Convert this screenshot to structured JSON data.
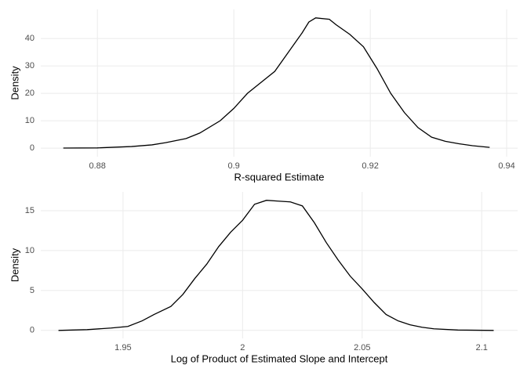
{
  "chart_data": [
    {
      "type": "line",
      "x_label": "R-squared Estimate",
      "y_label": "Density",
      "grid": true,
      "xlim": [
        0.8717,
        0.9416
      ],
      "ylim": [
        -3.1,
        50.6
      ],
      "xticks": [
        0.88,
        0.9,
        0.92,
        0.94
      ],
      "yticks": [
        0,
        10,
        20,
        30,
        40
      ],
      "x": [
        0.875,
        0.88,
        0.885,
        0.888,
        0.89,
        0.893,
        0.895,
        0.898,
        0.9,
        0.902,
        0.904,
        0.906,
        0.908,
        0.91,
        0.911,
        0.912,
        0.914,
        0.915,
        0.917,
        0.919,
        0.921,
        0.923,
        0.925,
        0.927,
        0.929,
        0.931,
        0.933,
        0.935,
        0.9375
      ],
      "series": [
        {
          "color": "#000000",
          "values": [
            0.05,
            0.1,
            0.6,
            1.2,
            2,
            3.5,
            5.5,
            10,
            14.5,
            20,
            24,
            28,
            35,
            42,
            46,
            47.5,
            47,
            45,
            41.5,
            37,
            29,
            20,
            13,
            7.5,
            4,
            2.5,
            1.6,
            0.9,
            0.3
          ]
        }
      ]
    },
    {
      "type": "line",
      "x_label": "Log of Product of Estimated Slope and Intercept",
      "y_label": "Density",
      "grid": true,
      "xlim": [
        1.9156,
        2.115
      ],
      "ylim": [
        -1.0,
        17.35
      ],
      "xticks": [
        1.95,
        2.0,
        2.05,
        2.1
      ],
      "yticks": [
        0,
        5,
        10,
        15
      ],
      "x": [
        1.923,
        1.935,
        1.945,
        1.952,
        1.958,
        1.963,
        1.97,
        1.975,
        1.98,
        1.985,
        1.99,
        1.995,
        2.0,
        2.005,
        2.01,
        2.015,
        2.02,
        2.025,
        2.03,
        2.035,
        2.04,
        2.045,
        2.05,
        2.055,
        2.06,
        2.065,
        2.07,
        2.075,
        2.08,
        2.09,
        2.105
      ],
      "series": [
        {
          "color": "#000000",
          "values": [
            0,
            0.1,
            0.3,
            0.5,
            1.2,
            2,
            3,
            4.5,
            6.5,
            8.3,
            10.5,
            12.3,
            13.8,
            15.8,
            16.3,
            16.2,
            16.1,
            15.6,
            13.5,
            11,
            8.8,
            6.8,
            5.2,
            3.5,
            2,
            1.2,
            0.7,
            0.4,
            0.2,
            0.05,
            0
          ]
        }
      ]
    }
  ]
}
